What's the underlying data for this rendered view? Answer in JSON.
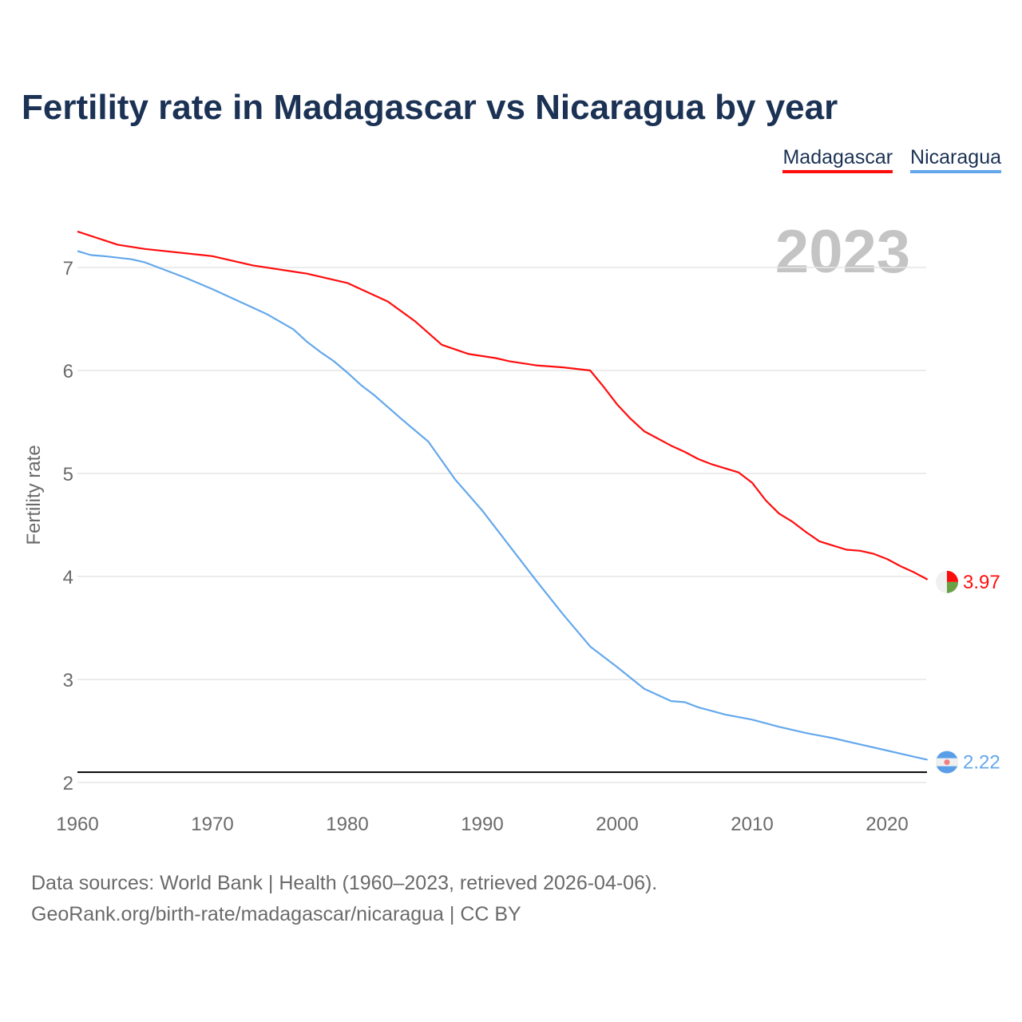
{
  "chart_data": {
    "type": "line",
    "title": "Fertility rate in Madagascar vs Nicaragua by year",
    "xlabel": "",
    "ylabel": "Fertility rate",
    "xlim": [
      1960,
      2023
    ],
    "ylim": [
      2,
      7.4
    ],
    "xticks": [
      "1960",
      "1970",
      "1980",
      "1990",
      "2000",
      "2010",
      "2020"
    ],
    "yticks": [
      "2",
      "3",
      "4",
      "5",
      "6",
      "7"
    ],
    "grid": true,
    "legend_position": "top-right",
    "year_label": "2023",
    "reference_line": 2.1,
    "series": [
      {
        "name": "Madagascar",
        "color": "#ff0d0d",
        "end_label": "3.97",
        "x": [
          1960,
          1963,
          1965,
          1970,
          1973,
          1977,
          1980,
          1983,
          1985,
          1987,
          1989,
          1991,
          1992,
          1994,
          1996,
          1998,
          1999,
          2000,
          2001,
          2002,
          2004,
          2005,
          2006,
          2007,
          2009,
          2010,
          2011,
          2012,
          2013,
          2014,
          2015,
          2016,
          2017,
          2018,
          2019,
          2020,
          2021,
          2022,
          2023
        ],
        "y": [
          7.35,
          7.22,
          7.18,
          7.11,
          7.02,
          6.94,
          6.85,
          6.67,
          6.48,
          6.25,
          6.16,
          6.12,
          6.09,
          6.05,
          6.03,
          6.0,
          5.84,
          5.67,
          5.53,
          5.41,
          5.27,
          5.21,
          5.14,
          5.09,
          5.01,
          4.91,
          4.74,
          4.61,
          4.53,
          4.43,
          4.34,
          4.3,
          4.26,
          4.25,
          4.22,
          4.17,
          4.1,
          4.04,
          3.97
        ]
      },
      {
        "name": "Nicaragua",
        "color": "#64a8ec",
        "end_label": "2.22",
        "x": [
          1960,
          1961,
          1962,
          1964,
          1965,
          1966,
          1968,
          1970,
          1972,
          1974,
          1976,
          1977,
          1978,
          1979,
          1980,
          1981,
          1982,
          1984,
          1986,
          1988,
          1990,
          1992,
          1994,
          1996,
          1998,
          2000,
          2002,
          2004,
          2005,
          2006,
          2008,
          2010,
          2012,
          2014,
          2016,
          2018,
          2020,
          2022,
          2023
        ],
        "y": [
          7.16,
          7.12,
          7.11,
          7.08,
          7.05,
          7.0,
          6.9,
          6.79,
          6.67,
          6.55,
          6.4,
          6.28,
          6.18,
          6.09,
          5.98,
          5.86,
          5.76,
          5.53,
          5.31,
          4.94,
          4.64,
          4.3,
          3.96,
          3.63,
          3.32,
          3.12,
          2.91,
          2.79,
          2.78,
          2.73,
          2.66,
          2.61,
          2.54,
          2.48,
          2.43,
          2.37,
          2.31,
          2.25,
          2.22
        ]
      }
    ]
  },
  "footer": {
    "line1": "Data sources: World Bank | Health (1960–2023, retrieved 2026-04-06).",
    "line2": "GeoRank.org/birth-rate/madagascar/nicaragua | CC BY"
  }
}
